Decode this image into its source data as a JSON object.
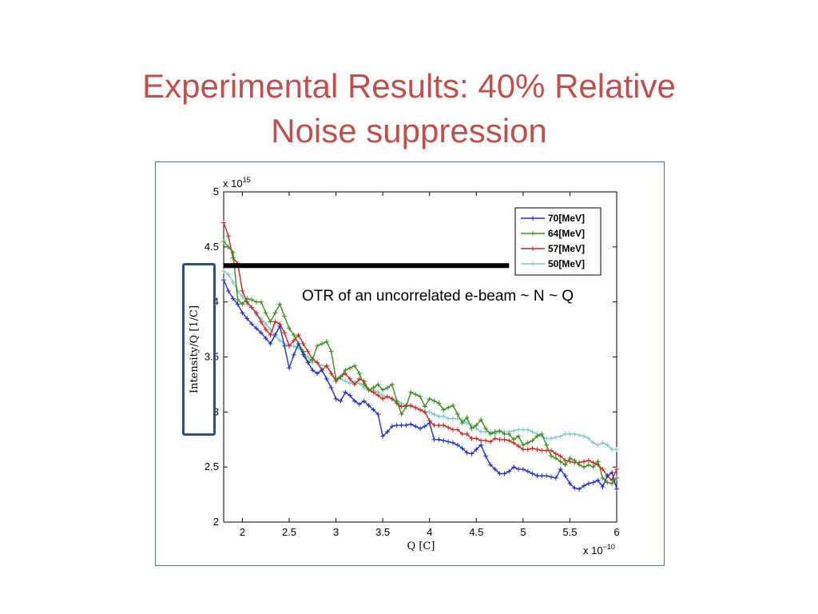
{
  "slide": {
    "title_line1": "Experimental Results: 40% Relative",
    "title_line2": "Noise suppression"
  },
  "annotation": "OTR of an uncorrelated e-beam ~ N ~ Q",
  "colors": {
    "title": "#c0504d",
    "frame": "#4a6f9a",
    "highlight_box": "#2f4f7f",
    "series_70": "#1f2fbf",
    "series_64": "#3f8a1f",
    "series_57": "#c8281e",
    "series_50": "#7ec8c8"
  },
  "chart_data": {
    "type": "line",
    "title": "",
    "xlabel": "Q [C]",
    "ylabel": "Intensity/Q [1/C]",
    "x_multiplier": "x 10^-10",
    "y_multiplier": "x 10^15",
    "x_multiplier_base": "x 10",
    "x_multiplier_exp": "−10",
    "y_multiplier_base": "x 10",
    "y_multiplier_exp": "15",
    "xlim": [
      1.8,
      6
    ],
    "ylim": [
      2,
      5
    ],
    "xticks": [
      "2",
      "2.5",
      "3",
      "3.5",
      "4",
      "4.5",
      "5",
      "5.5",
      "6"
    ],
    "yticks": [
      "2",
      "2.5",
      "3",
      "3.5",
      "4",
      "4.5",
      "5"
    ],
    "grid": false,
    "legend_position": "top-right",
    "reference_line": {
      "y": 4.33,
      "x_from": 1.8,
      "x_to": 4.85
    },
    "x": [
      1.8,
      1.85,
      1.9,
      1.95,
      2.0,
      2.05,
      2.1,
      2.15,
      2.2,
      2.25,
      2.3,
      2.35,
      2.4,
      2.45,
      2.5,
      2.55,
      2.6,
      2.65,
      2.7,
      2.75,
      2.8,
      2.85,
      2.9,
      2.95,
      3.0,
      3.05,
      3.1,
      3.15,
      3.2,
      3.25,
      3.3,
      3.35,
      3.4,
      3.45,
      3.5,
      3.55,
      3.6,
      3.65,
      3.7,
      3.75,
      3.8,
      3.85,
      3.9,
      3.95,
      4.0,
      4.05,
      4.1,
      4.15,
      4.2,
      4.25,
      4.3,
      4.35,
      4.4,
      4.45,
      4.5,
      4.55,
      4.6,
      4.65,
      4.7,
      4.75,
      4.8,
      4.85,
      4.9,
      4.95,
      5.0,
      5.05,
      5.1,
      5.15,
      5.2,
      5.25,
      5.3,
      5.35,
      5.4,
      5.45,
      5.5,
      5.55,
      5.6,
      5.65,
      5.7,
      5.75,
      5.8,
      5.85,
      5.9,
      5.95,
      6.0
    ],
    "series": [
      {
        "name": "70[MeV]",
        "values": [
          4.2,
          4.1,
          4.03,
          3.98,
          3.9,
          3.85,
          3.8,
          3.76,
          3.72,
          3.67,
          3.62,
          3.7,
          3.78,
          3.6,
          3.4,
          3.52,
          3.62,
          3.52,
          3.45,
          3.38,
          3.35,
          3.38,
          3.3,
          3.22,
          3.12,
          3.1,
          3.18,
          3.15,
          3.1,
          3.07,
          3.1,
          3.06,
          3.02,
          2.98,
          2.78,
          2.82,
          2.87,
          2.88,
          2.88,
          2.88,
          2.89,
          2.87,
          2.85,
          2.87,
          2.9,
          2.75,
          2.75,
          2.74,
          2.73,
          2.72,
          2.7,
          2.67,
          2.63,
          2.62,
          2.66,
          2.7,
          2.6,
          2.52,
          2.48,
          2.44,
          2.44,
          2.46,
          2.5,
          2.48,
          2.48,
          2.46,
          2.44,
          2.42,
          2.42,
          2.42,
          2.41,
          2.4,
          2.48,
          2.42,
          2.35,
          2.31,
          2.3,
          2.33,
          2.35,
          2.36,
          2.38,
          2.32,
          2.42,
          2.45,
          2.3
        ]
      },
      {
        "name": "64[MeV]",
        "values": [
          4.55,
          4.5,
          4.45,
          4.02,
          3.98,
          4.03,
          4.02,
          4.0,
          4.0,
          3.9,
          3.82,
          3.9,
          3.98,
          3.87,
          3.76,
          3.7,
          3.62,
          3.55,
          3.45,
          3.48,
          3.6,
          3.62,
          3.64,
          3.55,
          3.3,
          3.32,
          3.38,
          3.4,
          3.42,
          3.35,
          3.25,
          3.2,
          3.22,
          3.25,
          3.2,
          3.22,
          3.25,
          3.1,
          2.98,
          3.05,
          3.18,
          3.16,
          3.14,
          3.05,
          3.12,
          3.1,
          3.08,
          3.02,
          3.04,
          3.06,
          2.98,
          2.9,
          2.95,
          2.85,
          2.88,
          2.93,
          2.85,
          2.8,
          2.82,
          2.83,
          2.8,
          2.8,
          2.75,
          2.78,
          2.7,
          2.72,
          2.74,
          2.78,
          2.8,
          2.7,
          2.6,
          2.58,
          2.55,
          2.52,
          2.58,
          2.56,
          2.52,
          2.5,
          2.52,
          2.5,
          2.55,
          2.4,
          2.36,
          2.35,
          2.4
        ]
      },
      {
        "name": "57[MeV]",
        "values": [
          4.72,
          4.6,
          4.4,
          4.35,
          4.1,
          4.0,
          3.95,
          3.9,
          3.82,
          3.75,
          3.7,
          3.82,
          3.8,
          3.72,
          3.6,
          3.65,
          3.7,
          3.62,
          3.55,
          3.48,
          3.45,
          3.38,
          3.42,
          3.35,
          3.28,
          3.32,
          3.35,
          3.3,
          3.25,
          3.3,
          3.28,
          3.2,
          3.18,
          3.15,
          3.12,
          3.14,
          3.12,
          3.08,
          3.05,
          3.06,
          3.06,
          3.04,
          3.02,
          3.0,
          2.92,
          2.88,
          2.88,
          2.88,
          2.86,
          2.84,
          2.84,
          2.8,
          2.8,
          2.76,
          2.76,
          2.74,
          2.74,
          2.73,
          2.76,
          2.75,
          2.75,
          2.74,
          2.72,
          2.69,
          2.66,
          2.66,
          2.67,
          2.66,
          2.65,
          2.65,
          2.65,
          2.62,
          2.6,
          2.56,
          2.55,
          2.54,
          2.54,
          2.55,
          2.56,
          2.54,
          2.52,
          2.48,
          2.42,
          2.38,
          2.48
        ]
      },
      {
        "name": "50[MeV]",
        "values": [
          4.28,
          4.25,
          4.18,
          4.1,
          4.05,
          3.98,
          3.95,
          3.88,
          3.85,
          3.8,
          3.75,
          3.7,
          3.65,
          3.62,
          3.6,
          3.6,
          3.58,
          3.55,
          3.5,
          3.45,
          3.45,
          3.42,
          3.42,
          3.35,
          3.3,
          3.3,
          3.28,
          3.26,
          3.28,
          3.26,
          3.22,
          3.2,
          3.2,
          3.18,
          3.15,
          3.14,
          3.12,
          3.1,
          3.08,
          3.06,
          3.05,
          3.04,
          3.02,
          3.0,
          3.0,
          2.98,
          2.96,
          2.96,
          2.94,
          2.94,
          2.94,
          2.93,
          2.9,
          2.88,
          2.85,
          2.82,
          2.82,
          2.82,
          2.8,
          2.82,
          2.82,
          2.82,
          2.83,
          2.84,
          2.84,
          2.84,
          2.82,
          2.8,
          2.78,
          2.76,
          2.76,
          2.77,
          2.78,
          2.8,
          2.8,
          2.8,
          2.79,
          2.78,
          2.76,
          2.72,
          2.7,
          2.72,
          2.7,
          2.66,
          2.66
        ]
      }
    ]
  }
}
